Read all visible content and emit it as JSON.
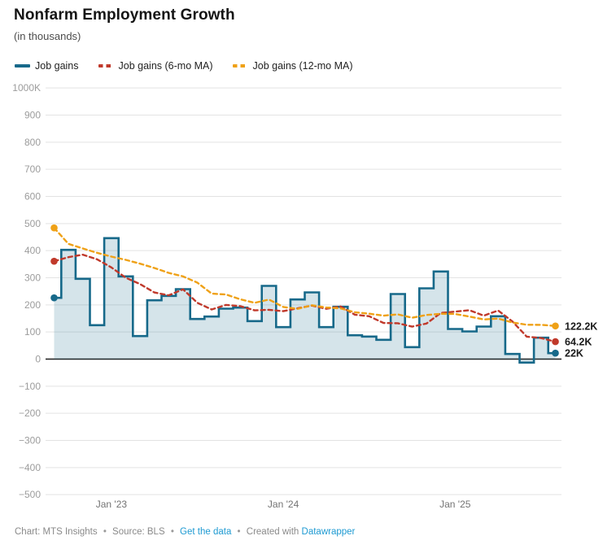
{
  "header": {
    "title": "Nonfarm Employment Growth",
    "subtitle": "(in thousands)"
  },
  "legend": {
    "items": [
      {
        "label": "Job gains",
        "color": "#17698a",
        "dash": false
      },
      {
        "label": "Job gains (6-mo MA)",
        "color": "#c0392b",
        "dash": true
      },
      {
        "label": "Job gains (12-mo MA)",
        "color": "#efa117",
        "dash": true
      }
    ]
  },
  "chart_data": {
    "type": "line",
    "title": "Nonfarm Employment Growth",
    "units": "thousands",
    "grid": true,
    "legend_position": "top",
    "ylim": [
      -500,
      1000
    ],
    "x": [
      "Sep '22",
      "Oct '22",
      "Nov '22",
      "Dec '22",
      "Jan '23",
      "Feb '23",
      "Mar '23",
      "Apr '23",
      "May '23",
      "Jun '23",
      "Jul '23",
      "Aug '23",
      "Sep '23",
      "Oct '23",
      "Nov '23",
      "Dec '23",
      "Jan '24",
      "Feb '24",
      "Mar '24",
      "Apr '24",
      "May '24",
      "Jun '24",
      "Jul '24",
      "Aug '24",
      "Sep '24",
      "Oct '24",
      "Nov '24",
      "Dec '24",
      "Jan '25",
      "Feb '25",
      "Mar '25",
      "Apr '25",
      "May '25",
      "Jun '25",
      "Jul '25",
      "Aug '25"
    ],
    "series": [
      {
        "name": "Job gains",
        "style": "step-area",
        "color": "#17698a",
        "fill_opacity": 0.18,
        "end_label": "22K",
        "values": [
          226,
          403,
          296,
          125,
          446,
          305,
          85,
          217,
          233,
          258,
          148,
          157,
          186,
          190,
          140,
          270,
          118,
          220,
          246,
          118,
          193,
          88,
          83,
          71,
          240,
          44,
          261,
          323,
          111,
          102,
          120,
          158,
          19,
          -13,
          79,
          22
        ]
      },
      {
        "name": "Job gains (6-mo MA)",
        "style": "dashed",
        "color": "#c0392b",
        "end_label": "64.2K",
        "values": [
          361,
          376,
          385,
          368,
          338,
          300.2,
          276.7,
          245.7,
          235.2,
          257.3,
          207.7,
          183,
          199.8,
          195.3,
          179.8,
          181.8,
          176.8,
          187.3,
          197.3,
          185.3,
          194.2,
          163.8,
          158,
          133.2,
          132.2,
          119.8,
          131.2,
          170.3,
          175,
          180.2,
          160.2,
          179.2,
          138.8,
          82.8,
          77.5,
          64.2
        ]
      },
      {
        "name": "Job gains (12-mo MA)",
        "style": "dashed",
        "color": "#efa117",
        "end_label": "122.2K",
        "values": [
          484,
          425,
          408,
          392,
          378,
          366,
          352,
          336,
          318,
          305,
          282,
          241.6,
          238.3,
          220.5,
          207.5,
          219.6,
          192.3,
          185.2,
          198.6,
          190.3,
          187,
          172.8,
          167.4,
          160.3,
          164.8,
          152.6,
          162.7,
          167.1,
          166.5,
          156.7,
          146.2,
          149.5,
          135,
          126.6,
          126.3,
          122.2
        ]
      }
    ],
    "yticks": [
      {
        "v": 1000,
        "label": "1000K"
      },
      {
        "v": 900,
        "label": "900"
      },
      {
        "v": 800,
        "label": "800"
      },
      {
        "v": 700,
        "label": "700"
      },
      {
        "v": 600,
        "label": "600"
      },
      {
        "v": 500,
        "label": "500"
      },
      {
        "v": 400,
        "label": "400"
      },
      {
        "v": 300,
        "label": "300"
      },
      {
        "v": 200,
        "label": "200"
      },
      {
        "v": 100,
        "label": "100"
      },
      {
        "v": 0,
        "label": "0"
      },
      {
        "v": -100,
        "label": "−100"
      },
      {
        "v": -200,
        "label": "−200"
      },
      {
        "v": -300,
        "label": "−300"
      },
      {
        "v": -400,
        "label": "−400"
      },
      {
        "v": -500,
        "label": "−500"
      }
    ],
    "xticks": [
      {
        "index": 4,
        "label": "Jan '23"
      },
      {
        "index": 16,
        "label": "Jan '24"
      },
      {
        "index": 28,
        "label": "Jan '25"
      }
    ]
  },
  "footer": {
    "chart_credit": "Chart: MTS Insights",
    "source": "Source: BLS",
    "get_data_link": "Get the data",
    "created_prefix": "Created with",
    "datawrapper_link": "Datawrapper",
    "separator": "•",
    "link_color": "#1e9ad2"
  }
}
